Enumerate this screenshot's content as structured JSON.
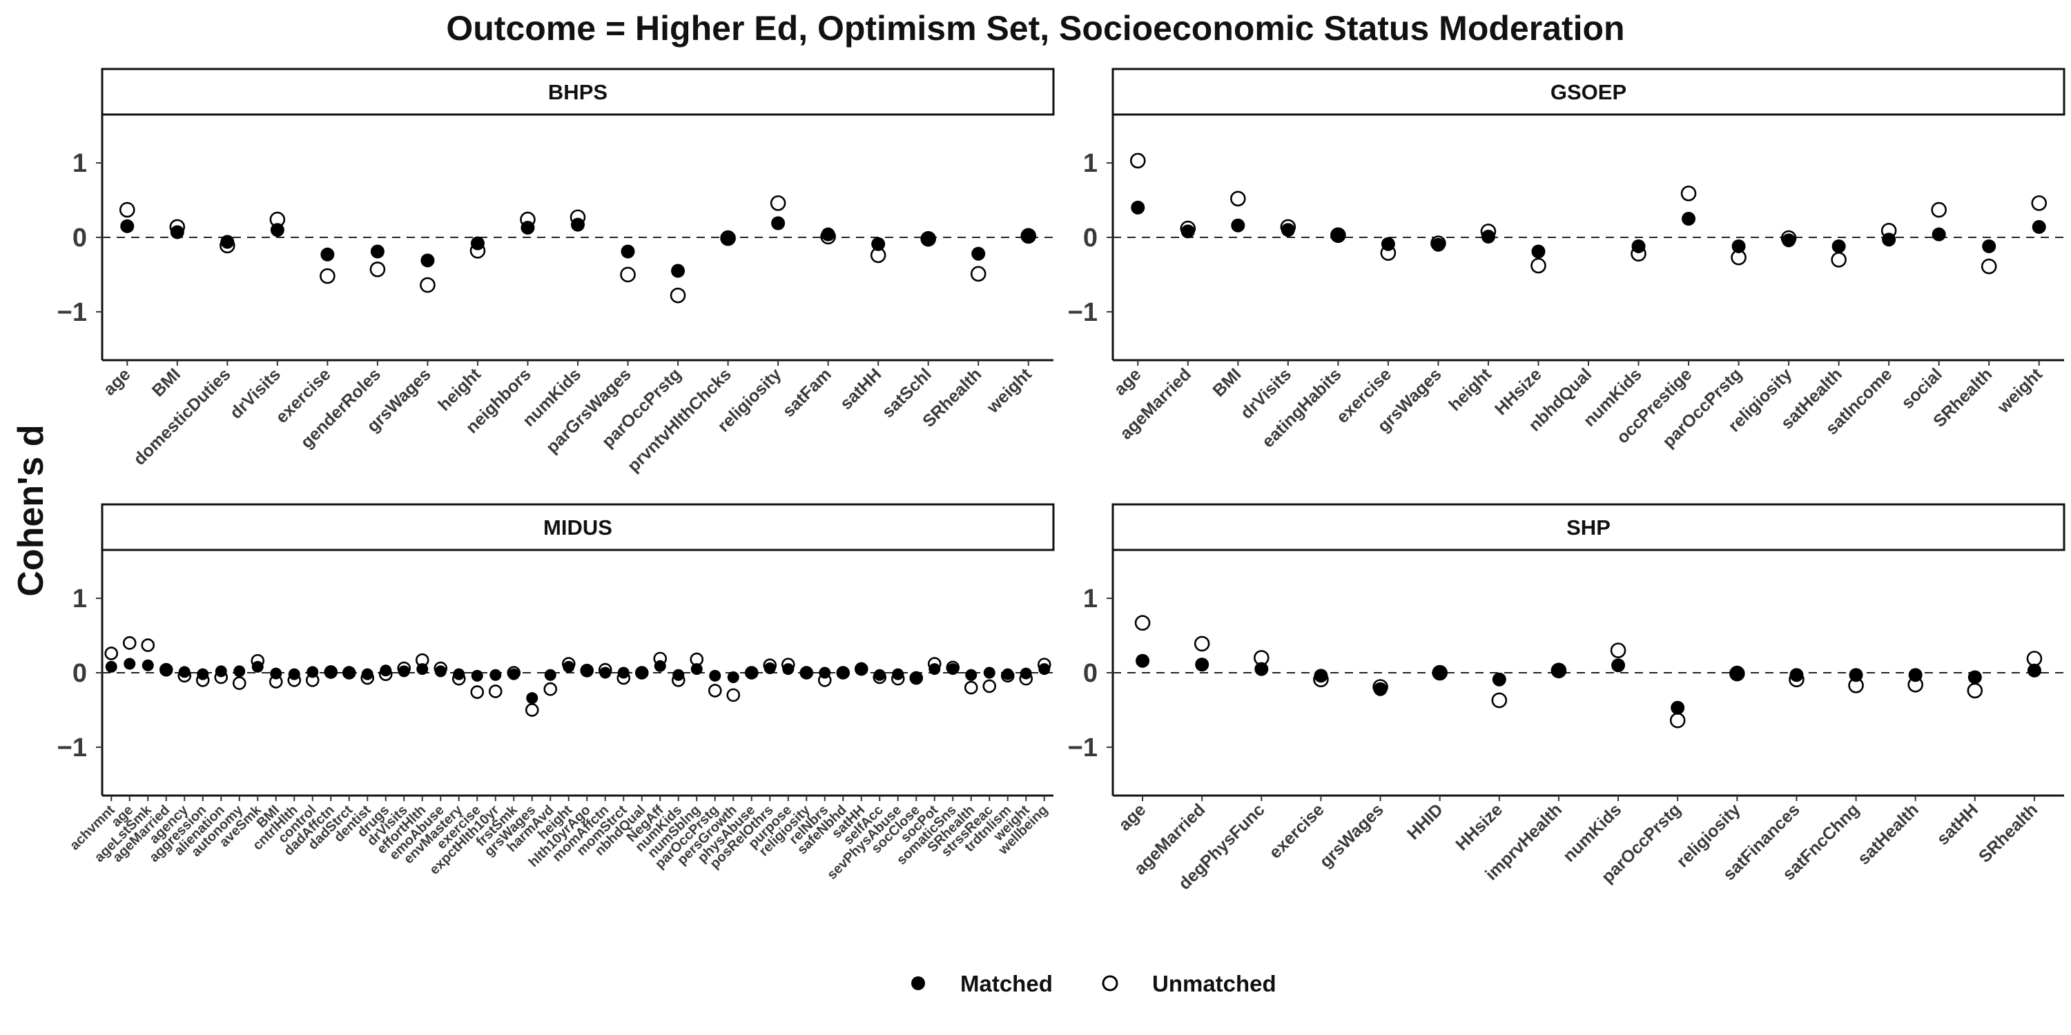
{
  "title": "Outcome = Higher Ed, Optimism Set, Socioeconomic Status Moderation",
  "ylabel": "Cohen's d",
  "legend": [
    {
      "label": "Matched",
      "marker": "filled-circle",
      "color": "#000000"
    },
    {
      "label": "Unmatched",
      "marker": "open-circle",
      "color": "#000000"
    }
  ],
  "chart_data": [
    {
      "type": "scatter",
      "panel": "BHPS",
      "ylim": [
        -1.65,
        1.65
      ],
      "yticks": [
        -1,
        0,
        1
      ],
      "reference_line": 0,
      "categories": [
        "age",
        "BMI",
        "domesticDuties",
        "drVisits",
        "exercise",
        "genderRoles",
        "grsWages",
        "height",
        "neighbors",
        "numKids",
        "parGrsWages",
        "parOccPrstg",
        "prvntvHlthChcks",
        "religiosity",
        "satFam",
        "satHH",
        "satSchl",
        "SRhealth",
        "weight"
      ],
      "series": [
        {
          "name": "Matched",
          "values": [
            0.15,
            0.07,
            -0.06,
            0.1,
            -0.23,
            -0.19,
            -0.31,
            -0.08,
            0.13,
            0.17,
            -0.19,
            -0.45,
            0.0,
            0.19,
            0.04,
            -0.09,
            -0.02,
            -0.22,
            0.01
          ]
        },
        {
          "name": "Unmatched",
          "values": [
            0.37,
            0.14,
            -0.11,
            0.24,
            -0.52,
            -0.43,
            -0.64,
            -0.18,
            0.24,
            0.27,
            -0.5,
            -0.78,
            -0.01,
            0.46,
            0.01,
            -0.24,
            -0.02,
            -0.49,
            0.02
          ]
        }
      ]
    },
    {
      "type": "scatter",
      "panel": "GSOEP",
      "ylim": [
        -1.65,
        1.65
      ],
      "yticks": [
        -1,
        0,
        1
      ],
      "reference_line": 0,
      "categories": [
        "age",
        "ageMarried",
        "BMI",
        "drVisits",
        "eatingHabits",
        "exercise",
        "grsWages",
        "height",
        "HHsize",
        "nbhdQual",
        "numKids",
        "occPrestige",
        "parOccPrstg",
        "religiosity",
        "satHealth",
        "satIncome",
        "social",
        "SRhealth",
        "weight"
      ],
      "series": [
        {
          "name": "Matched",
          "values": [
            0.4,
            0.08,
            0.16,
            0.1,
            0.02,
            -0.09,
            -0.1,
            0.01,
            -0.19,
            null,
            -0.12,
            0.25,
            -0.12,
            -0.04,
            -0.12,
            -0.03,
            0.04,
            -0.12,
            0.14
          ]
        },
        {
          "name": "Unmatched",
          "values": [
            1.03,
            0.12,
            0.52,
            0.14,
            0.03,
            -0.21,
            -0.08,
            0.08,
            -0.38,
            null,
            -0.22,
            0.59,
            -0.27,
            -0.01,
            -0.3,
            0.09,
            0.37,
            -0.39,
            0.46
          ]
        }
      ]
    },
    {
      "type": "scatter",
      "panel": "MIDUS",
      "ylim": [
        -1.65,
        1.65
      ],
      "yticks": [
        -1,
        0,
        1
      ],
      "reference_line": 0,
      "categories": [
        "achvmnt",
        "age",
        "ageLstSmk",
        "ageMarried",
        "agency",
        "aggression",
        "alienation",
        "autonomy",
        "aveSmk",
        "BMI",
        "cntrlHlth",
        "control",
        "dadAffctn",
        "dadStrct",
        "dentist",
        "drugs",
        "drVisits",
        "effortHlth",
        "emoAbuse",
        "envMastery",
        "exercise",
        "expctHlth10yr",
        "frstSmk",
        "grsWages",
        "harmAvd",
        "height",
        "hlth10yrAgo",
        "momAffctn",
        "momStrct",
        "nbhdQual",
        "NegAff",
        "numKids",
        "numSblng",
        "parOccPrstg",
        "persGrowth",
        "physAbuse",
        "posRelOthrs",
        "purpose",
        "religiosity",
        "relNbrs",
        "safeNbhd",
        "satHH",
        "selfAcc",
        "sevPhysAbuse",
        "socClose",
        "socPot",
        "somaticSns",
        "SRhealth",
        "strssReac",
        "trdtnlism",
        "weight",
        "wellbeing"
      ],
      "series": [
        {
          "name": "Matched",
          "values": [
            0.08,
            0.12,
            0.1,
            0.04,
            0.01,
            -0.02,
            0.02,
            0.02,
            0.08,
            -0.01,
            -0.02,
            0.01,
            0.02,
            0.01,
            -0.02,
            0.03,
            0.02,
            0.05,
            0.02,
            -0.02,
            -0.04,
            -0.03,
            -0.02,
            -0.34,
            -0.03,
            0.08,
            0.04,
            0.0,
            0.0,
            -0.01,
            0.09,
            -0.03,
            0.05,
            -0.04,
            -0.06,
            0.0,
            0.06,
            0.05,
            0.01,
            0.0,
            0.01,
            0.05,
            -0.03,
            -0.02,
            -0.06,
            0.05,
            0.05,
            -0.03,
            0.0,
            -0.02,
            -0.01,
            0.05
          ]
        },
        {
          "name": "Unmatched",
          "values": [
            0.26,
            0.4,
            0.37,
            0.04,
            -0.04,
            -0.1,
            -0.06,
            -0.14,
            0.16,
            -0.12,
            -0.1,
            -0.1,
            0.01,
            0.0,
            -0.07,
            -0.02,
            0.06,
            0.17,
            0.06,
            -0.08,
            -0.26,
            -0.25,
            0.0,
            -0.5,
            -0.22,
            0.12,
            0.03,
            0.04,
            -0.07,
            0.0,
            0.19,
            -0.1,
            0.18,
            -0.24,
            -0.3,
            0.0,
            0.1,
            0.11,
            0.0,
            -0.1,
            0.0,
            0.05,
            -0.06,
            -0.08,
            -0.07,
            0.12,
            0.07,
            -0.2,
            -0.18,
            -0.04,
            -0.08,
            0.11
          ]
        }
      ]
    },
    {
      "type": "scatter",
      "panel": "SHP",
      "ylim": [
        -1.65,
        1.65
      ],
      "yticks": [
        -1,
        0,
        1
      ],
      "reference_line": 0,
      "categories": [
        "age",
        "ageMarried",
        "degPhysFunc",
        "exercise",
        "grsWages",
        "HHID",
        "HHsize",
        "imprvHealth",
        "numKids",
        "parOccPrstg",
        "religiosity",
        "satFinances",
        "satFncChng",
        "satHealth",
        "satHH",
        "SRhealth"
      ],
      "series": [
        {
          "name": "Matched",
          "values": [
            0.16,
            0.11,
            0.05,
            -0.04,
            -0.22,
            0.01,
            -0.09,
            0.04,
            0.1,
            -0.47,
            -0.01,
            -0.03,
            -0.03,
            -0.03,
            -0.06,
            0.03
          ]
        },
        {
          "name": "Unmatched",
          "values": [
            0.67,
            0.39,
            0.2,
            -0.09,
            -0.19,
            0.0,
            -0.37,
            0.03,
            0.3,
            -0.64,
            -0.01,
            -0.09,
            -0.17,
            -0.16,
            -0.24,
            0.19
          ]
        }
      ]
    }
  ]
}
